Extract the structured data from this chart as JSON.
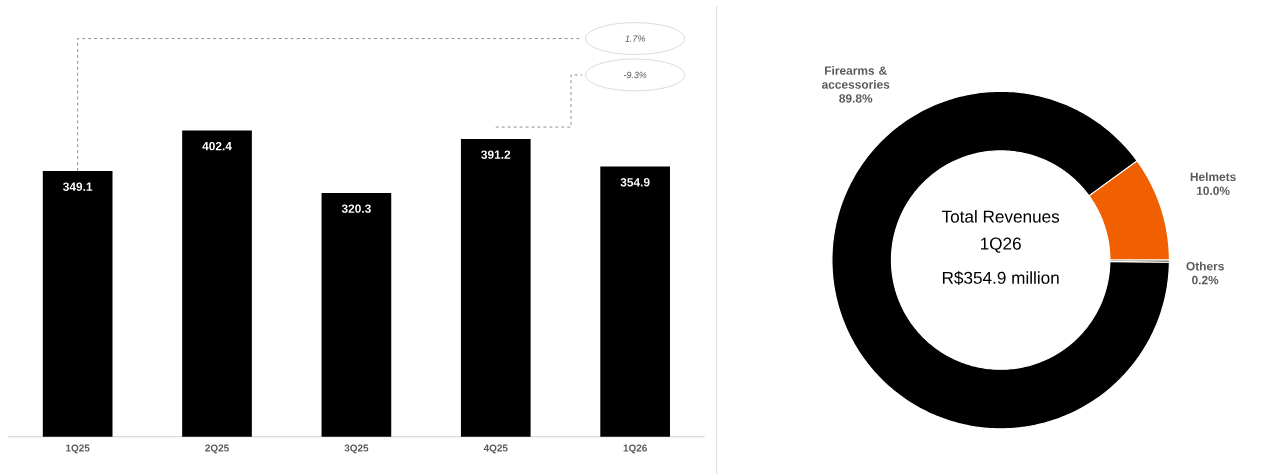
{
  "chart_data": [
    {
      "type": "bar",
      "categories": [
        "1Q25",
        "2Q25",
        "3Q25",
        "4Q25",
        "1Q26"
      ],
      "values": [
        349.1,
        402.4,
        320.3,
        391.2,
        354.9
      ],
      "color": "#000000",
      "data_labels": true,
      "annotations": [
        "1.7%",
        "-9.3%"
      ]
    },
    {
      "type": "donut",
      "categories": [
        "Firearms & accessories",
        "Helmets",
        "Others"
      ],
      "values": [
        89.8,
        10.0,
        0.2
      ],
      "value_labels": [
        "89.8%",
        "10.0%",
        "0.2%"
      ],
      "colors": [
        "#000000",
        "#f06000",
        "#000000"
      ],
      "data_labels": true,
      "annotations": [
        "Total Revenues",
        "1Q26",
        "R$354.9 million"
      ]
    }
  ]
}
